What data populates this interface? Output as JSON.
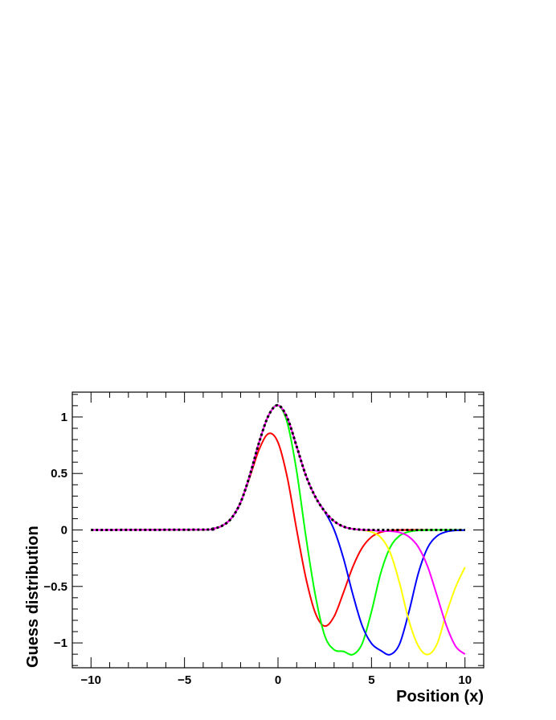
{
  "chart_data": {
    "type": "line",
    "title": "",
    "xlabel": "Position (x)",
    "ylabel": "Guess distribution",
    "xlim": [
      -11,
      11
    ],
    "ylim": [
      -1.22,
      1.22
    ],
    "x_ticks": [
      -10,
      -5,
      0,
      5,
      10
    ],
    "x_tick_labels": [
      "−10",
      "−5",
      "0",
      "5",
      "10"
    ],
    "y_ticks": [
      -1,
      -0.5,
      0,
      0.5,
      1
    ],
    "y_tick_labels": [
      "−1",
      "−0.5",
      "0",
      "0.5",
      "1"
    ],
    "grid": false,
    "legend": "none",
    "x": [
      -10,
      -4,
      -3.5,
      -3,
      -2.5,
      -2,
      -1.5,
      -1,
      -0.5,
      0,
      0.5,
      1,
      1.5,
      2,
      2.5,
      3,
      3.5,
      4,
      4.5,
      5,
      5.5,
      6,
      6.5,
      7,
      7.5,
      8,
      8.5,
      9,
      9.5,
      10
    ],
    "series": [
      {
        "color": "#ff0000",
        "width": 2,
        "dash": "",
        "values": [
          0,
          0.003,
          0.011,
          0.036,
          0.102,
          0.244,
          0.472,
          0.716,
          0.853,
          0.775,
          0.462,
          0.0,
          -0.432,
          -0.737,
          -0.851,
          -0.766,
          -0.555,
          -0.327,
          -0.158,
          -0.062,
          -0.02,
          -0.005,
          -0.001,
          0,
          0,
          0,
          0,
          0,
          0,
          0
        ]
      },
      {
        "color": "#00ff00",
        "width": 2,
        "dash": "",
        "values": [
          0,
          0.003,
          0.011,
          0.036,
          0.102,
          0.244,
          0.488,
          0.781,
          1.015,
          1.104,
          0.947,
          0.517,
          -0.068,
          -0.581,
          -0.936,
          -1.06,
          -1.075,
          -1.103,
          -1.007,
          -0.722,
          -0.379,
          -0.154,
          -0.052,
          -0.016,
          -0.004,
          -0.001,
          0,
          0,
          0,
          0
        ]
      },
      {
        "color": "#0000ff",
        "width": 2,
        "dash": "",
        "values": [
          0,
          0.003,
          0.011,
          0.036,
          0.102,
          0.244,
          0.488,
          0.781,
          1.015,
          1.104,
          0.991,
          0.738,
          0.478,
          0.292,
          0.162,
          0.002,
          -0.25,
          -0.569,
          -0.847,
          -1.005,
          -1.068,
          -1.103,
          -1.01,
          -0.726,
          -0.386,
          -0.158,
          -0.054,
          -0.016,
          -0.004,
          -0.001
        ]
      },
      {
        "color": "#ffff00",
        "width": 2,
        "dash": "",
        "values": [
          0,
          0.003,
          0.011,
          0.036,
          0.102,
          0.244,
          0.488,
          0.781,
          1.015,
          1.104,
          0.991,
          0.738,
          0.478,
          0.292,
          0.164,
          0.078,
          0.03,
          0.009,
          -0.001,
          -0.018,
          -0.066,
          -0.2,
          -0.469,
          -0.802,
          -1.026,
          -1.103,
          -1.011,
          -0.742,
          -0.505,
          -0.33
        ]
      },
      {
        "color": "#ff00ff",
        "width": 2,
        "dash": "",
        "values": [
          0,
          0.003,
          0.011,
          0.036,
          0.102,
          0.244,
          0.488,
          0.781,
          1.015,
          1.104,
          0.991,
          0.738,
          0.478,
          0.292,
          0.164,
          0.078,
          0.03,
          0.009,
          0.001,
          -0.003,
          -0.01,
          -0.011,
          -0.022,
          -0.06,
          -0.15,
          -0.323,
          -0.58,
          -0.844,
          -1.03,
          -1.1
        ]
      },
      {
        "color": "#000000",
        "width": 3,
        "dash": "3,3",
        "values": [
          0,
          0.003,
          0.011,
          0.036,
          0.102,
          0.244,
          0.488,
          0.781,
          1.015,
          1.104,
          0.991,
          0.738,
          0.478,
          0.292,
          0.164,
          0.078,
          0.03,
          0.009,
          0.002,
          0,
          0,
          0,
          0,
          0,
          0,
          0,
          0,
          0,
          0,
          0
        ]
      }
    ]
  }
}
